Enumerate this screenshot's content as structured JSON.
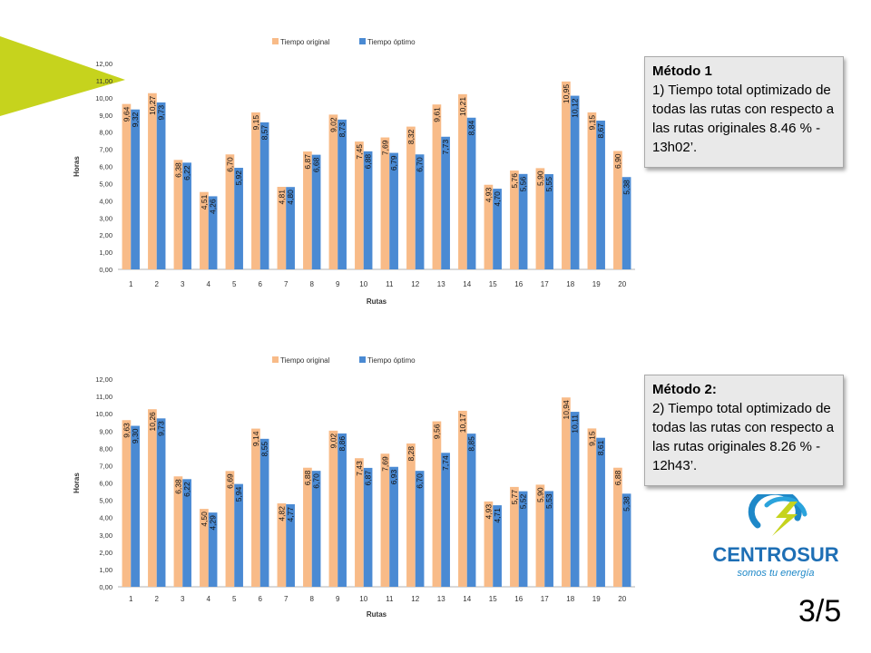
{
  "colors": {
    "original": "#f8bb88",
    "optimo": "#4a8ad3",
    "accent": "#c6d31d"
  },
  "legend": {
    "original": "Tiempo original",
    "optimo": "Tiempo óptimo"
  },
  "notes": [
    {
      "title": "Método 1",
      "body": "1) Tiempo total optimizado de todas las rutas con respecto a las rutas originales 8.46 % - 13h02’."
    },
    {
      "title": "Método 2:",
      "body": "2) Tiempo total optimizado de todas las rutas con respecto a las rutas originales  8.26 % - 12h43’."
    }
  ],
  "logo": {
    "brand": "CENTROSUR",
    "tagline": "somos tu energía"
  },
  "page_number": "3/5",
  "chart_data": [
    {
      "type": "bar",
      "xlabel": "Rutas",
      "ylabel": "Horas",
      "ylim": [
        0,
        12
      ],
      "yticks": [
        "0,00",
        "1,00",
        "2,00",
        "3,00",
        "4,00",
        "5,00",
        "6,00",
        "7,00",
        "8,00",
        "9,00",
        "10,00",
        "11,00",
        "12,00"
      ],
      "categories": [
        "1",
        "2",
        "3",
        "4",
        "5",
        "6",
        "7",
        "8",
        "9",
        "10",
        "11",
        "12",
        "13",
        "14",
        "15",
        "16",
        "17",
        "18",
        "19",
        "20"
      ],
      "legend_position": "top",
      "grid": false,
      "series": [
        {
          "name": "Tiempo original",
          "values": [
            9.64,
            10.27,
            6.38,
            4.51,
            6.7,
            9.15,
            4.81,
            6.87,
            9.02,
            7.45,
            7.69,
            8.32,
            9.61,
            10.21,
            4.93,
            5.76,
            5.9,
            10.95,
            9.15,
            6.9
          ],
          "labels": [
            "9,64",
            "10,27",
            "6,38",
            "4,51",
            "6,70",
            "9,15",
            "4,81",
            "6,87",
            "9,02",
            "7,45",
            "7,69",
            "8,32",
            "9,61",
            "10,21",
            "4,93",
            "5,76",
            "5,90",
            "10,95",
            "9,15",
            "6,90"
          ]
        },
        {
          "name": "Tiempo óptimo",
          "values": [
            9.32,
            9.73,
            6.22,
            4.26,
            5.92,
            8.57,
            4.8,
            6.68,
            8.73,
            6.88,
            6.79,
            6.7,
            7.73,
            8.84,
            4.7,
            5.56,
            5.55,
            10.12,
            8.67,
            5.38
          ],
          "labels": [
            "9,32",
            "9,73",
            "6,22",
            "4,26",
            "5,92",
            "8,57",
            "4,80",
            "6,68",
            "8,73",
            "6,88",
            "6,79",
            "6,70",
            "7,73",
            "8,84",
            "4,70",
            "5,56",
            "5,55",
            "10,12",
            "8,67",
            "5,38"
          ]
        }
      ]
    },
    {
      "type": "bar",
      "xlabel": "Rutas",
      "ylabel": "Horas",
      "ylim": [
        0,
        12
      ],
      "yticks": [
        "0,00",
        "1,00",
        "2,00",
        "3,00",
        "4,00",
        "5,00",
        "6,00",
        "7,00",
        "8,00",
        "9,00",
        "10,00",
        "11,00",
        "12,00"
      ],
      "categories": [
        "1",
        "2",
        "3",
        "4",
        "5",
        "6",
        "7",
        "8",
        "9",
        "10",
        "11",
        "12",
        "13",
        "14",
        "15",
        "16",
        "17",
        "18",
        "19",
        "20"
      ],
      "legend_position": "top",
      "grid": false,
      "series": [
        {
          "name": "Tiempo original",
          "values": [
            9.63,
            10.26,
            6.38,
            4.5,
            6.69,
            9.14,
            4.82,
            6.88,
            9.02,
            7.43,
            7.69,
            8.28,
            9.56,
            10.17,
            4.93,
            5.77,
            5.9,
            10.94,
            9.15,
            6.88
          ],
          "labels": [
            "9,63",
            "10,26",
            "6,38",
            "4,50",
            "6,69",
            "9,14",
            "4,82",
            "6,88",
            "9,02",
            "7,43",
            "7,69",
            "8,28",
            "9,56",
            "10,17",
            "4,93",
            "5,77",
            "5,90",
            "10,94",
            "9,15",
            "6,88"
          ]
        },
        {
          "name": "Tiempo óptimo",
          "values": [
            9.3,
            9.73,
            6.22,
            4.29,
            5.94,
            8.55,
            4.77,
            6.7,
            8.86,
            6.87,
            6.93,
            6.7,
            7.74,
            8.85,
            4.71,
            5.52,
            5.53,
            10.11,
            8.61,
            5.38
          ],
          "labels": [
            "9,30",
            "9,73",
            "6,22",
            "4,29",
            "5,94",
            "8,55",
            "4,77",
            "6,70",
            "8,86",
            "6,87",
            "6,93",
            "6,70",
            "7,74",
            "8,85",
            "4,71",
            "5,52",
            "5,53",
            "10,11",
            "8,61",
            "5,38"
          ]
        }
      ]
    }
  ]
}
